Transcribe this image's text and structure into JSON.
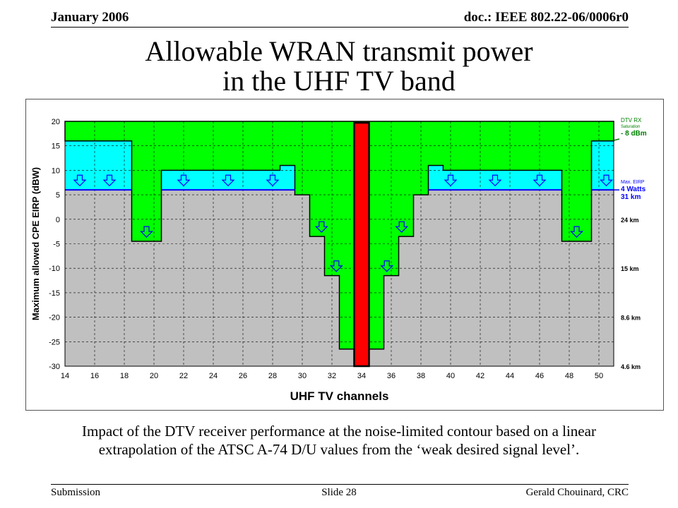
{
  "header": {
    "date": "January 2006",
    "doc": "doc.: IEEE 802.22-06/0006r0"
  },
  "title_line1": "Allowable WRAN transmit power",
  "title_line2": "in the UHF TV band",
  "caption_line1": "Impact of the DTV receiver performance at the noise-limited contour based on a linear",
  "caption_line2": "extrapolation of the ATSC A-74 D/U values from the ‘weak desired signal level’.",
  "footer": {
    "left": "Submission",
    "center": "Slide 28",
    "right": "Gerald Chouinard, CRC"
  },
  "colors": {
    "green": "#00ff00",
    "cyan": "#00ffff",
    "gray": "#c0c0c0",
    "red": "#ff0000",
    "blue": "#0000ff",
    "darkgreen": "#008000"
  },
  "chart_data": {
    "type": "area",
    "xlabel": "UHF TV channels",
    "ylabel": "Maximum allowed CPE EIRP (dBW)",
    "xlim": [
      14,
      51
    ],
    "ylim": [
      -30,
      20
    ],
    "x_ticks": [
      14,
      16,
      18,
      20,
      22,
      24,
      26,
      28,
      30,
      32,
      34,
      36,
      38,
      40,
      42,
      44,
      46,
      48,
      50
    ],
    "y_ticks": [
      20,
      15,
      10,
      5,
      0,
      -5,
      -10,
      -15,
      -20,
      -25,
      -30
    ],
    "grid": true,
    "series": [
      {
        "segments": [
          {
            "from": 14.0,
            "to": 18.5,
            "value": 16
          },
          {
            "from": 18.5,
            "to": 20.5,
            "value": -4.5
          },
          {
            "from": 20.5,
            "to": 28.5,
            "value": 10
          },
          {
            "from": 28.5,
            "to": 29.5,
            "value": 11
          },
          {
            "from": 29.5,
            "to": 30.5,
            "value": 5
          },
          {
            "from": 30.5,
            "to": 31.5,
            "value": -3.5
          },
          {
            "from": 31.5,
            "to": 32.5,
            "value": -11.5
          },
          {
            "from": 32.5,
            "to": 33.5,
            "value": -26.5
          },
          {
            "from": 34.5,
            "to": 35.5,
            "value": -26.5
          },
          {
            "from": 35.5,
            "to": 36.5,
            "value": -11.5
          },
          {
            "from": 36.5,
            "to": 37.5,
            "value": -3.5
          },
          {
            "from": 37.5,
            "to": 38.5,
            "value": 5
          },
          {
            "from": 38.5,
            "to": 39.5,
            "value": 11
          },
          {
            "from": 39.5,
            "to": 47.5,
            "value": 10
          },
          {
            "from": 47.5,
            "to": 49.5,
            "value": -4.5
          },
          {
            "from": 49.5,
            "to": 51.0,
            "value": 16
          }
        ]
      }
    ],
    "reference_levels": [
      {
        "value": 20,
        "label_lines": [
          "DTV RX",
          "Saturation",
          "- 8 dBm"
        ]
      },
      {
        "value": 6,
        "label_lines": [
          "Max. EIRP",
          "4 Watts",
          "31 km"
        ]
      }
    ],
    "right_labels": [
      {
        "value": 0,
        "text": "24 km"
      },
      {
        "value": -10,
        "text": "15 km"
      },
      {
        "value": -20,
        "text": "8.6 km"
      },
      {
        "value": -30,
        "text": "4.6 km"
      }
    ],
    "occupied_channel": {
      "channel": 34,
      "label": ""
    },
    "arrows": [
      {
        "x": 15,
        "y": 8
      },
      {
        "x": 17,
        "y": 8
      },
      {
        "x": 19.5,
        "y": -2.5
      },
      {
        "x": 22,
        "y": 8
      },
      {
        "x": 25,
        "y": 8
      },
      {
        "x": 28,
        "y": 8
      },
      {
        "x": 31.3,
        "y": -1.5
      },
      {
        "x": 32.3,
        "y": -9.5
      },
      {
        "x": 35.7,
        "y": -9.5
      },
      {
        "x": 36.7,
        "y": -1.5
      },
      {
        "x": 40,
        "y": 8
      },
      {
        "x": 43,
        "y": 8
      },
      {
        "x": 46,
        "y": 8
      },
      {
        "x": 48.5,
        "y": -2.5
      },
      {
        "x": 50.5,
        "y": 8
      }
    ]
  }
}
